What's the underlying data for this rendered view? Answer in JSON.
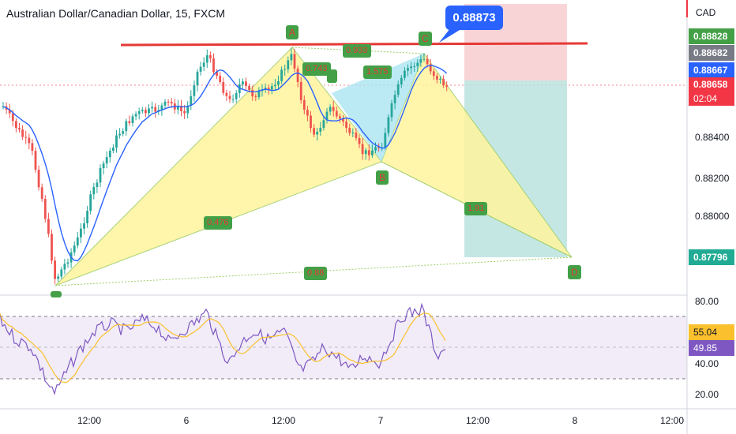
{
  "header": {
    "symbol_title": "Australian Dollar/Canadian Dollar, 15, FXCM",
    "currency": "CAD"
  },
  "callout": {
    "price": "0.88873"
  },
  "price_axis": {
    "ticks": [
      "0.88400",
      "0.88200",
      "0.88000"
    ],
    "tags": [
      {
        "value": "0.88828",
        "color": "#43a047"
      },
      {
        "value": "0.88682",
        "color": "#787b86"
      },
      {
        "value": "0.88667",
        "color": "#2962ff"
      },
      {
        "value": "0.88658",
        "color": "#f23645"
      },
      {
        "value": "02:04",
        "color": "#f23645"
      },
      {
        "value": "0.87796",
        "color": "#22ab94"
      }
    ]
  },
  "rsi_axis": {
    "ticks": [
      "80.00",
      "40.00",
      "20.00"
    ],
    "tags": [
      {
        "value": "55.04",
        "color": "#fbc02d",
        "text_color": "#131722"
      },
      {
        "value": "49.85",
        "color": "#7e57c2",
        "text_color": "#ffffff"
      }
    ]
  },
  "time_axis": {
    "ticks": [
      "12:00",
      "6",
      "12:00",
      "7",
      "12:00",
      "8",
      "12:00"
    ]
  },
  "pattern": {
    "points": [
      "A",
      "B",
      "C",
      "D"
    ],
    "ratios": [
      "0.933",
      "0.743",
      "1.575",
      "0.476",
      "1.91",
      "0.88"
    ]
  },
  "colors": {
    "up_candle": "#26a69a",
    "down_candle": "#ef5350",
    "ma_line": "#2962ff",
    "resistance": "#e53935",
    "pattern_fill": "#fff59d",
    "bc_fill": "#a5e3f0",
    "rsi_line": "#7e57c2",
    "rsi_signal": "#fbc02d"
  }
}
